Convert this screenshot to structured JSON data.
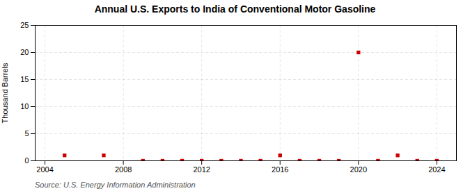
{
  "chart_data": {
    "type": "scatter",
    "title": "Annual U.S. Exports to India of Conventional Motor Gasoline",
    "ylabel": "Thousand Barrels",
    "source": "Source: U.S. Energy Information Administration",
    "x": [
      2005,
      2007,
      2009,
      2010,
      2011,
      2012,
      2013,
      2014,
      2015,
      2016,
      2017,
      2018,
      2019,
      2020,
      2021,
      2022,
      2023,
      2024
    ],
    "values": [
      1,
      1,
      0,
      0,
      0,
      0,
      0,
      0,
      0,
      1,
      0,
      0,
      0,
      20,
      0,
      1,
      0,
      0
    ],
    "color": "#cc0000",
    "marker": "square",
    "xlim": [
      2003.5,
      2025
    ],
    "ylim": [
      0,
      25
    ],
    "xticks": [
      2004,
      2008,
      2012,
      2016,
      2020,
      2024
    ],
    "yticks": [
      0,
      5,
      10,
      15,
      20,
      25
    ],
    "grid": true
  }
}
